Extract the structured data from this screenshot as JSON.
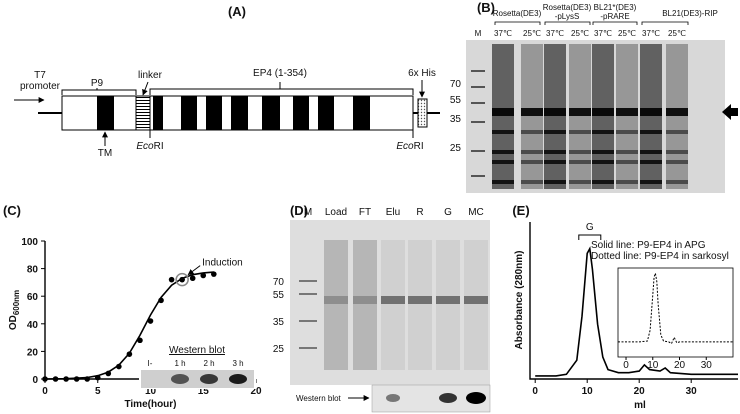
{
  "panel_a": {
    "label": "(A)",
    "promoter": [
      "T7",
      "promoter"
    ],
    "p9": "P9",
    "linker": "linker",
    "ep4": "EP4 (1-354)",
    "his": "6x His",
    "tm": "TM",
    "sites": [
      [
        "Eco",
        "RI"
      ],
      [
        "Eco",
        "RI"
      ]
    ]
  },
  "panel_b": {
    "label": "(B)",
    "marker_lane": "M",
    "strains": [
      [
        "Rosetta(DE3)"
      ],
      [
        "Rosetta(DE3)",
        "-pLysS"
      ],
      [
        "BL21*(DE3)",
        "-pRARE"
      ],
      [
        "BL21(DE3)-RIP"
      ]
    ],
    "temperatures": [
      "37℃",
      "25℃",
      "37℃",
      "25℃",
      "37℃",
      "25℃",
      "37℃",
      "25℃"
    ],
    "markers": [
      70,
      55,
      35,
      25
    ]
  },
  "panel_d": {
    "label": "(D)",
    "lanes": [
      "M",
      "Load",
      "FT",
      "Elu",
      "R",
      "G",
      "MC"
    ],
    "markers": [
      70,
      55,
      35,
      25
    ],
    "blot_label": "Western blot"
  },
  "chart_data": [
    {
      "type": "scatter",
      "panel_label": "(C)",
      "x_label": "Time(hour)",
      "y_label": "OD",
      "y_label_sub": "600nm",
      "xlim": [
        0,
        20
      ],
      "xticks": [
        0,
        5,
        10,
        15,
        20
      ],
      "ylim": [
        0,
        100
      ],
      "yticks": [
        0,
        20,
        40,
        60,
        80,
        100
      ],
      "series": [
        {
          "type": "scatter",
          "color": "#000000",
          "x": [
            0,
            1,
            2,
            3,
            4,
            5,
            6,
            7,
            8,
            9,
            10,
            11,
            12,
            13,
            14,
            15,
            16
          ],
          "values": [
            0,
            0,
            0,
            0,
            0,
            1,
            4,
            9,
            18,
            28,
            42,
            57,
            72,
            72,
            73,
            75,
            76
          ]
        },
        {
          "type": "line",
          "color": "#000000",
          "x": [
            0,
            2,
            4,
            5,
            6,
            7,
            8,
            9,
            10,
            11,
            12,
            13,
            14,
            15,
            16
          ],
          "values": [
            0,
            0.2,
            1.1,
            2.4,
            5,
            10,
            18.7,
            31.6,
            46.4,
            59.2,
            68,
            73,
            75.6,
            76.9,
            77.5
          ]
        }
      ],
      "annotation": {
        "text": "Induction",
        "x": 13,
        "y": 72
      },
      "inset": {
        "title": "Western blot",
        "lanes": [
          "I-",
          "1 h",
          "2 h",
          "3 h"
        ]
      }
    },
    {
      "type": "line",
      "panel_label": "(E)",
      "x_label": "ml",
      "y_label": "Absorbance (280nm)",
      "xlim": [
        -1,
        39
      ],
      "xticks": [
        0,
        10,
        20,
        30
      ],
      "ylim": [
        0,
        100
      ],
      "series": [
        {
          "style": "solid",
          "color": "#000000",
          "x": [
            0,
            4,
            6,
            8,
            9,
            10,
            10.5,
            11,
            12,
            13,
            14,
            16,
            18,
            20,
            21,
            22,
            24,
            25,
            26,
            30,
            39
          ],
          "values": [
            2,
            2,
            3,
            12,
            40,
            80,
            83,
            70,
            35,
            14,
            6,
            4,
            4,
            5,
            9,
            6,
            5,
            7,
            4,
            3,
            3
          ]
        }
      ],
      "annotation": {
        "text": "G",
        "x": 10.5
      },
      "notes": [
        "Solid line: P9-EP4 in APG",
        "Dotted line: P9-EP4 in sarkosyl"
      ],
      "inset": {
        "xlim": [
          -3,
          40
        ],
        "xticks": [
          0,
          10,
          20,
          30
        ],
        "ylim": [
          0,
          100
        ],
        "series": [
          {
            "style": "dotted",
            "color": "#000000",
            "x": [
              -3,
              5,
              8,
              9,
              10,
              10.5,
              11,
              11.5,
              12,
              13,
              14,
              16,
              17,
              18,
              19,
              20,
              30,
              40
            ],
            "values": [
              17,
              17,
              18,
              30,
              70,
              90,
              94,
              85,
              60,
              25,
              18,
              17,
              15,
              22,
              16,
              17,
              17,
              17
            ]
          }
        ]
      }
    }
  ]
}
